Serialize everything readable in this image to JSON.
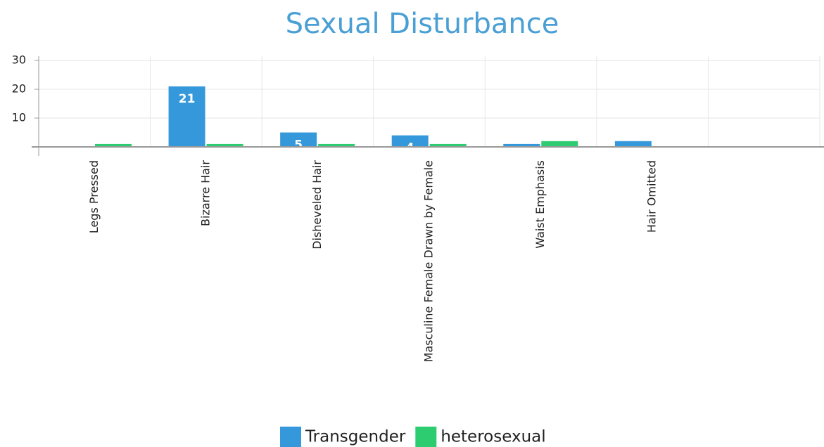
{
  "chart_data": {
    "type": "bar",
    "title": "Sexual Disturbance",
    "categories": [
      "Legs Pressed",
      "Bizarre Hair",
      "Disheveled Hair",
      "Masculine Female Drawn by Female",
      "Waist Emphasis",
      "Hair Omitted",
      null
    ],
    "series": [
      {
        "name": "Transgender",
        "color": "#3498db",
        "values": [
          0,
          21,
          5,
          4,
          1,
          2,
          null
        ]
      },
      {
        "name": "heterosexual",
        "color": "#2ecc71",
        "values": [
          1,
          1,
          1,
          1,
          2,
          0,
          null
        ]
      }
    ],
    "ylim": [
      0,
      30
    ],
    "yticks": [
      10,
      20,
      30
    ],
    "grid": true
  }
}
